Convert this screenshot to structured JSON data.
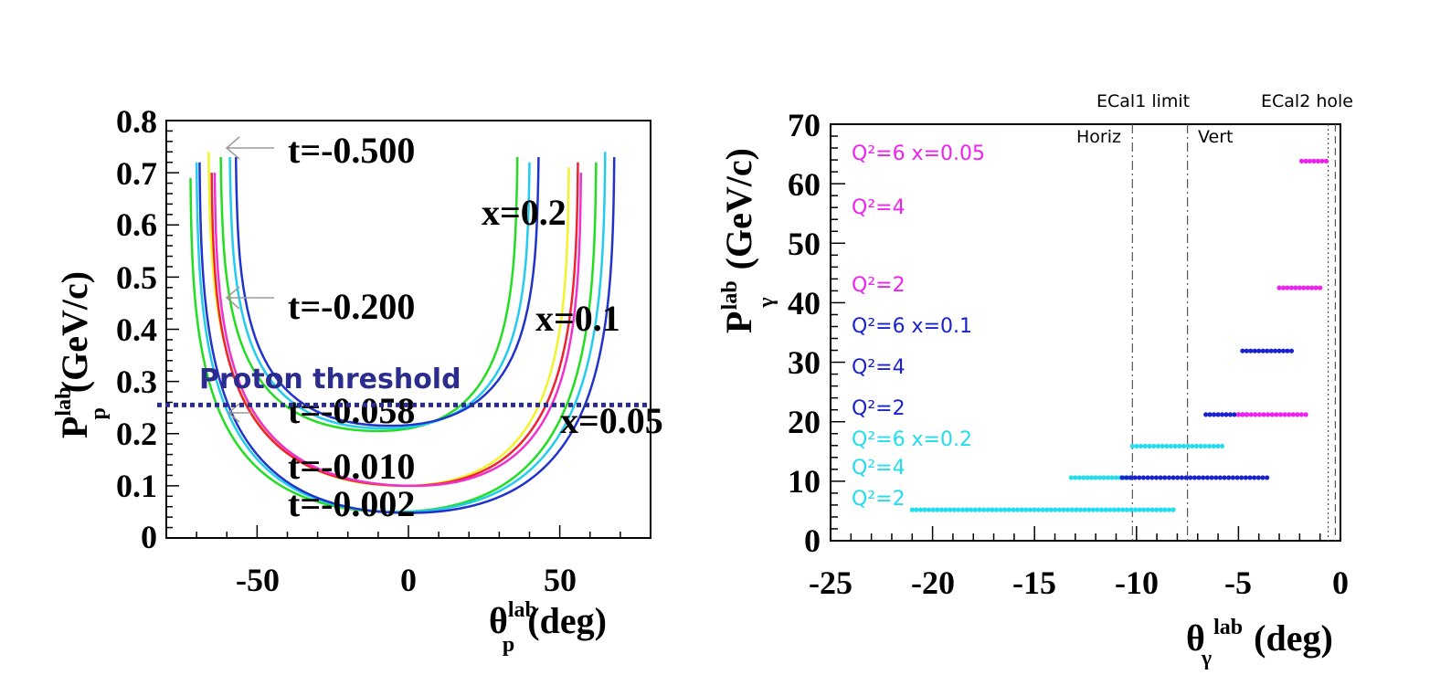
{
  "chart_data": [
    {
      "type": "line",
      "x_unit_label": "deg",
      "xlim": [
        -80,
        80
      ],
      "ylim": [
        0,
        0.8
      ],
      "x_ticks": [
        "-50",
        "0",
        "50"
      ],
      "y_ticks": [
        "0",
        "0.1",
        "0.2",
        "0.3",
        "0.4",
        "0.5",
        "0.6",
        "0.7",
        "0.8"
      ],
      "xlabel": {
        "main": "θ",
        "sup": "lab",
        "sub": "p",
        "unit": "(deg)"
      },
      "ylabel": {
        "main": "P",
        "sup": "lab",
        "sub": "p",
        "unit": "(GeV/c)"
      },
      "t_labels": [
        "t=-0.500",
        "t=-0.200",
        "t=-0.058",
        "t=-0.010",
        "t=-0.002"
      ],
      "x_labels": [
        "x=0.2",
        "x=0.1",
        "x=0.05"
      ],
      "threshold": {
        "label": "Proton threshold",
        "p": 0.255,
        "color": "#2b2d8e"
      },
      "colors": {
        "green": "#22dd22",
        "cyan": "#22ccee",
        "blue": "#2233cc",
        "yellow": "#f3f32a",
        "red": "#ee2233",
        "magenta": "#ee33cc"
      },
      "series": [
        {
          "group": "x=0.2",
          "color": "green",
          "bottom": 0.205,
          "xmin": -10,
          "left_x": -62,
          "right_x": 36,
          "top_left": 0.73,
          "top_right": 0.73
        },
        {
          "group": "x=0.2",
          "color": "cyan",
          "bottom": 0.21,
          "xmin": -8,
          "left_x": -59,
          "right_x": 40,
          "top_left": 0.73,
          "top_right": 0.72
        },
        {
          "group": "x=0.2",
          "color": "blue",
          "bottom": 0.215,
          "xmin": -6,
          "left_x": -57,
          "right_x": 43,
          "top_left": 0.73,
          "top_right": 0.73
        },
        {
          "group": "x=0.1",
          "color": "yellow",
          "bottom": 0.1,
          "xmin": -2,
          "left_x": -66,
          "right_x": 53,
          "top_left": 0.74,
          "top_right": 0.71
        },
        {
          "group": "x=0.1",
          "color": "red",
          "bottom": 0.1,
          "xmin": 0,
          "left_x": -65,
          "right_x": 56,
          "top_left": 0.7,
          "top_right": 0.72
        },
        {
          "group": "x=0.1",
          "color": "magenta",
          "bottom": 0.1,
          "xmin": 2,
          "left_x": -64,
          "right_x": 57,
          "top_left": 0.7,
          "top_right": 0.7
        },
        {
          "group": "x=0.05",
          "color": "green",
          "bottom": 0.05,
          "xmin": -5,
          "left_x": -72,
          "right_x": 62,
          "top_left": 0.69,
          "top_right": 0.72
        },
        {
          "group": "x=0.05",
          "color": "cyan",
          "bottom": 0.05,
          "xmin": -3,
          "left_x": -70,
          "right_x": 65,
          "top_left": 0.72,
          "top_right": 0.74
        },
        {
          "group": "x=0.05",
          "color": "blue",
          "bottom": 0.048,
          "xmin": 0,
          "left_x": -69,
          "right_x": 68,
          "top_left": 0.72,
          "top_right": 0.73
        }
      ]
    },
    {
      "type": "scatter",
      "xlim": [
        -25,
        0
      ],
      "ylim": [
        0,
        70
      ],
      "x_ticks": [
        "-25",
        "-20",
        "-15",
        "-10",
        "-5",
        "0"
      ],
      "y_ticks": [
        "0",
        "10",
        "20",
        "30",
        "40",
        "50",
        "60",
        "70"
      ],
      "xlabel": {
        "main": "θ",
        "sup": "lab",
        "sub": "γ",
        "unit": "(deg)"
      },
      "ylabel": {
        "main": "P",
        "sup": "lab",
        "sub": "γ",
        "unit": "(GeV/c)"
      },
      "vlines": [
        {
          "x": -10.2,
          "label": "Horiz",
          "style": "dashdot"
        },
        {
          "x": -7.5,
          "label": "Vert",
          "style": "dashdot"
        },
        {
          "x": -0.6,
          "label": "",
          "style": "dotted"
        },
        {
          "x": -0.25,
          "label": "",
          "style": "dashed"
        }
      ],
      "top_labels": [
        "ECal1 limit",
        "ECal2 hole"
      ],
      "legend": [
        {
          "text": "Q²=6 x=0.05",
          "color": "#ee22ee"
        },
        {
          "text": "Q²=4",
          "color": "#ee22ee"
        },
        {
          "text": "Q²=2",
          "color": "#ee22ee"
        },
        {
          "text": "Q²=6 x=0.1",
          "color": "#1a22cc"
        },
        {
          "text": "Q²=4",
          "color": "#1a22cc"
        },
        {
          "text": "Q²=2",
          "color": "#1a22cc"
        },
        {
          "text": "Q²=6 x=0.2",
          "color": "#22ddee"
        },
        {
          "text": "Q²=4",
          "color": "#22ddee"
        },
        {
          "text": "Q²=2",
          "color": "#22ddee"
        }
      ],
      "series": [
        {
          "name": "Q²=2 x=0.2",
          "color": "#22ddee",
          "y": 5.2,
          "x": [
            -21.0,
            -8.2
          ]
        },
        {
          "name": "Q²=4 x=0.2",
          "color": "#22ddee",
          "y": 10.6,
          "x": [
            -13.2,
            -10.4
          ]
        },
        {
          "name": "Q²=6 x=0.2",
          "color": "#22ddee",
          "y": 15.9,
          "x": [
            -10.2,
            -5.8
          ]
        },
        {
          "name": "Q²=2 x=0.1",
          "color": "#1a22cc",
          "y": 21.2,
          "x": [
            -6.6,
            -4.6
          ]
        },
        {
          "name": "Q²=4 x=0.1",
          "color": "#1a22cc",
          "y": 10.6,
          "x": [
            -10.7,
            -3.6
          ]
        },
        {
          "name": "Q²=6 x=0.1",
          "color": "#1a22cc",
          "y": 31.9,
          "x": [
            -4.8,
            -2.4
          ]
        },
        {
          "name": "Q²=2 x=0.05",
          "color": "#ee22ee",
          "y": 21.2,
          "x": [
            -5.0,
            -1.7
          ]
        },
        {
          "name": "Q²=4 x=0.05",
          "color": "#ee22ee",
          "y": 42.5,
          "x": [
            -3.0,
            -1.0
          ]
        },
        {
          "name": "Q²=6 x=0.05",
          "color": "#ee22ee",
          "y": 63.8,
          "x": [
            -1.9,
            -0.7
          ]
        }
      ]
    }
  ]
}
